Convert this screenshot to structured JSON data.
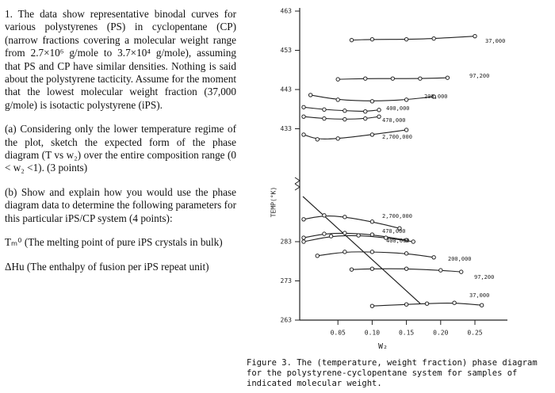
{
  "question": {
    "intro": "1. The data show representative binodal curves for various polystyrenes (PS) in cyclopentane (CP) (narrow fractions covering a molecular weight range from 2.7×10⁶ g/mole to 3.7×10⁴ g/mole), assuming that PS and CP have similar densities. Nothing is said about the polystyrene tacticity. Assume for the moment that the lowest molecular weight fraction (37,000 g/mole) is isotactic polystyrene (iPS).",
    "part_a": "(a) Considering only the lower temperature regime of the plot, sketch the expected form of the phase diagram (T vs w₂) over the entire composition range (0 < w₂ <1). (3 points)",
    "part_b": "(b) Show and explain how you would use the phase diagram data to determine the following parameters for this particular iPS/CP system (4 points):",
    "param_1": "Tₘ⁰ (The melting point of pure iPS crystals in bulk)",
    "param_2": "ΔHu (The enthalpy of fusion per iPS repeat unit)"
  },
  "figure": {
    "ylabel": "TEMP(°K)",
    "xlabel": "W₂",
    "caption": "Figure 3. The (temperature, weight fraction) phase diagram for the polystyrene-cyclopentane system for samples of indicated molecular weight.",
    "yticks": [
      263,
      273,
      283,
      433,
      443,
      453,
      463
    ],
    "xticks": [
      0.05,
      {
        "value": 0.1,
        "label": "0.10"
      },
      0.15,
      {
        "value": 0.2,
        "label": "0.20"
      },
      0.25
    ],
    "curves": [
      {
        "name": "37,000",
        "w2": [
          0.07,
          0.1,
          0.15,
          0.19,
          0.25
        ],
        "temp": [
          455.6,
          455.8,
          455.8,
          456.0,
          456.6
        ]
      },
      {
        "name": "97,200",
        "w2": [
          0.05,
          0.09,
          0.13,
          0.17,
          0.21
        ],
        "temp": [
          445.6,
          445.8,
          445.8,
          445.8,
          446.0
        ]
      },
      {
        "name": "200,000",
        "w2": [
          0.01,
          0.05,
          0.1,
          0.15,
          0.19
        ],
        "temp": [
          441.6,
          440.4,
          440.0,
          440.4,
          441.2
        ]
      },
      {
        "name": "400,000",
        "w2": [
          0.0,
          0.03,
          0.06,
          0.09,
          0.11
        ],
        "temp": [
          438.5,
          437.9,
          437.6,
          437.4,
          437.8
        ]
      },
      {
        "name": "470,000",
        "w2": [
          0.0,
          0.03,
          0.06,
          0.09,
          0.11
        ],
        "temp": [
          436.1,
          435.6,
          435.4,
          435.6,
          436.1
        ]
      },
      {
        "name": "2,700,000",
        "w2": [
          0.0,
          0.02,
          0.05,
          0.1,
          0.15
        ],
        "temp": [
          431.5,
          430.3,
          430.5,
          431.5,
          432.7
        ]
      },
      {
        "name": "2,700,000",
        "w2": [
          0.0,
          0.03,
          0.06,
          0.1,
          0.14
        ],
        "temp": [
          288.7,
          289.7,
          289.3,
          288.1,
          286.4
        ]
      },
      {
        "name": "470,000",
        "w2": [
          0.0,
          0.03,
          0.06,
          0.1,
          0.15
        ],
        "temp": [
          284.0,
          285.0,
          285.2,
          284.8,
          283.4
        ]
      },
      {
        "name": "400,000",
        "w2": [
          0.0,
          0.04,
          0.08,
          0.12,
          0.16
        ],
        "temp": [
          283.0,
          284.4,
          284.6,
          284.0,
          283.0
        ]
      },
      {
        "name": "200,000",
        "w2": [
          0.02,
          0.06,
          0.1,
          0.15,
          0.19
        ],
        "temp": [
          279.4,
          280.4,
          280.4,
          280.0,
          279.0
        ]
      },
      {
        "name": "97,200",
        "w2": [
          0.07,
          0.1,
          0.15,
          0.2,
          0.23
        ],
        "temp": [
          275.9,
          276.1,
          276.1,
          275.7,
          275.3
        ]
      },
      {
        "name": "37,000",
        "w2": [
          0.1,
          0.15,
          0.18,
          0.22,
          0.26
        ],
        "temp": [
          266.6,
          267.0,
          267.2,
          267.4,
          266.8
        ]
      }
    ]
  }
}
